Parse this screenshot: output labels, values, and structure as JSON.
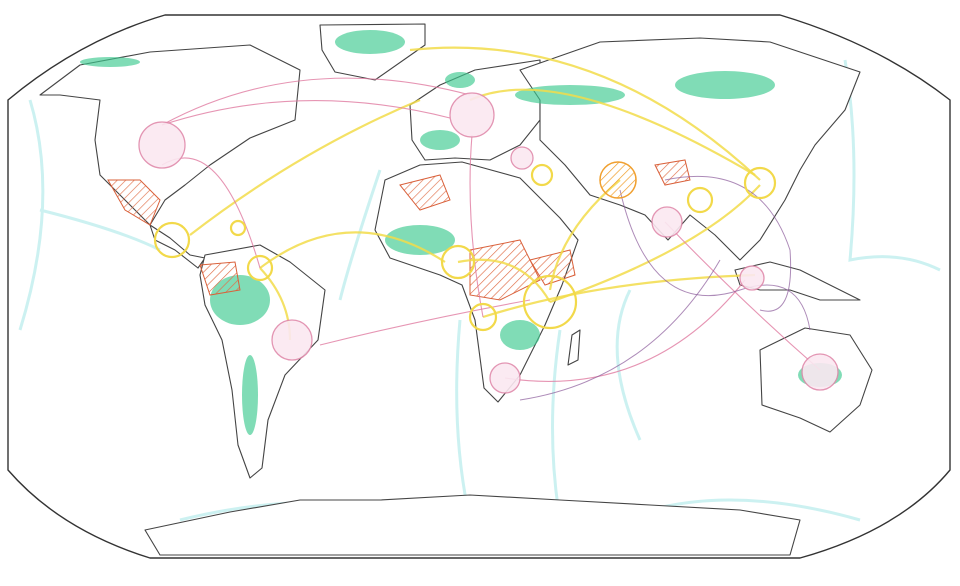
{
  "map": {
    "style": "hand-drawn world map, colored pencil",
    "colors": {
      "frame": "#333333",
      "coastline": "#444444",
      "forest": "#3cc98f",
      "ocean_currents": "#bfeeee",
      "hub_pink": "#e08aab",
      "hub_yellow": "#f2d94a",
      "hatched_regions": "#d9603a",
      "flow_purple": "#8a5a9a"
    }
  }
}
